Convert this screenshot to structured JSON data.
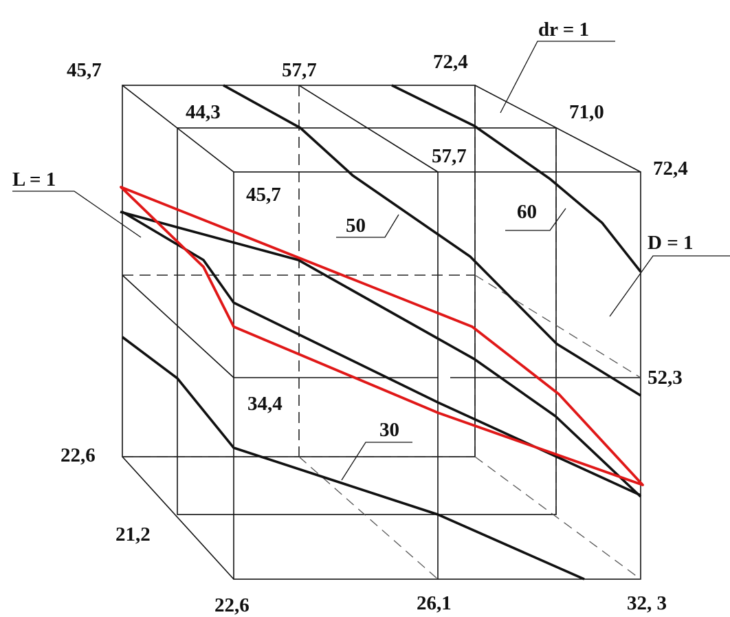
{
  "colors": {
    "line": "#111111",
    "highlight": "#e01818"
  },
  "labels": {
    "v_top_back_left": "45,7",
    "v_top_back_mid": "57,7",
    "v_top_back_right": "72,4",
    "v_top_mid_left": "44,3",
    "v_top_mid_right": "71,0",
    "v_top_front_mid": "57,7",
    "v_top_front_right": "72,4",
    "v_front_top_left": "45,7",
    "v_front_mid_left": "34,4",
    "v_front_mid_right": "52,3",
    "v_left_bottom_back": "22,6",
    "v_left_bottom_mid": "21,2",
    "v_bottom_front_left": "22,6",
    "v_bottom_front_mid": "26,1",
    "v_bottom_front_right": "32, 3"
  },
  "axes": {
    "dr": "dr = 1",
    "L": "L = 1",
    "D": "D = 1"
  },
  "isolines": {
    "v30": "30",
    "v50": "50",
    "v60": "60"
  }
}
